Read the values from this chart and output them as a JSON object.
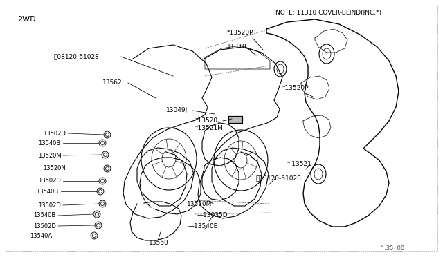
{
  "bg_color": "#ffffff",
  "fig_width": 6.4,
  "fig_height": 3.72,
  "dpi": 100,
  "note_text": "NOTE; 11310 COVER-BLIND(INC.*)",
  "label_2wd": "2WD",
  "bottom_right_text": "^:35  00",
  "line_color": "#000000",
  "thin_line": 0.5,
  "medium_line": 0.8,
  "thick_line": 1.0,
  "border_dash": "--",
  "text_color": "#000000",
  "gray": "#888888"
}
